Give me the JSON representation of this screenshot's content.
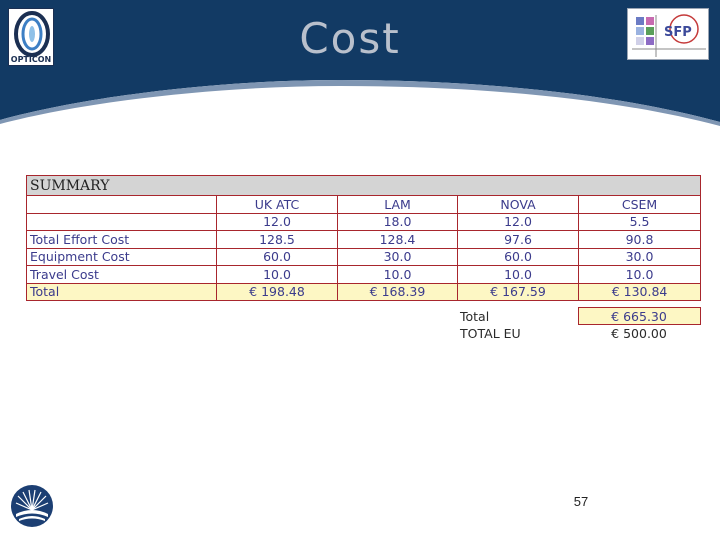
{
  "slide": {
    "title": "Cost",
    "page_number": "57"
  },
  "logos": {
    "left_text": "OPTICON",
    "right_text": "SFP"
  },
  "summary_table": {
    "heading": "SUMMARY",
    "columns": [
      "UK ATC",
      "LAM",
      "NOVA",
      "CSEM"
    ],
    "effort_values": [
      "12.0",
      "18.0",
      "12.0",
      "5.5"
    ],
    "rows": [
      {
        "label": "Total Effort Cost",
        "values": [
          "128.5",
          "128.4",
          "97.6",
          "90.8"
        ]
      },
      {
        "label": "Equipment Cost",
        "values": [
          "60.0",
          "30.0",
          "60.0",
          "30.0"
        ]
      },
      {
        "label": "Travel Cost",
        "values": [
          "10.0",
          "10.0",
          "10.0",
          "10.0"
        ]
      },
      {
        "label": "Total",
        "values": [
          "€ 198.48",
          "€ 168.39",
          "€ 167.59",
          "€ 130.84"
        ]
      }
    ]
  },
  "totals": {
    "total_label": "Total",
    "total_value": "€ 665.30",
    "eu_label": "TOTAL EU",
    "eu_value": "€ 500.00"
  },
  "colors": {
    "header_navy": "#123a64",
    "table_border": "#a8262d",
    "table_text": "#3b3b8c",
    "total_highlight": "#fdf7c4"
  }
}
